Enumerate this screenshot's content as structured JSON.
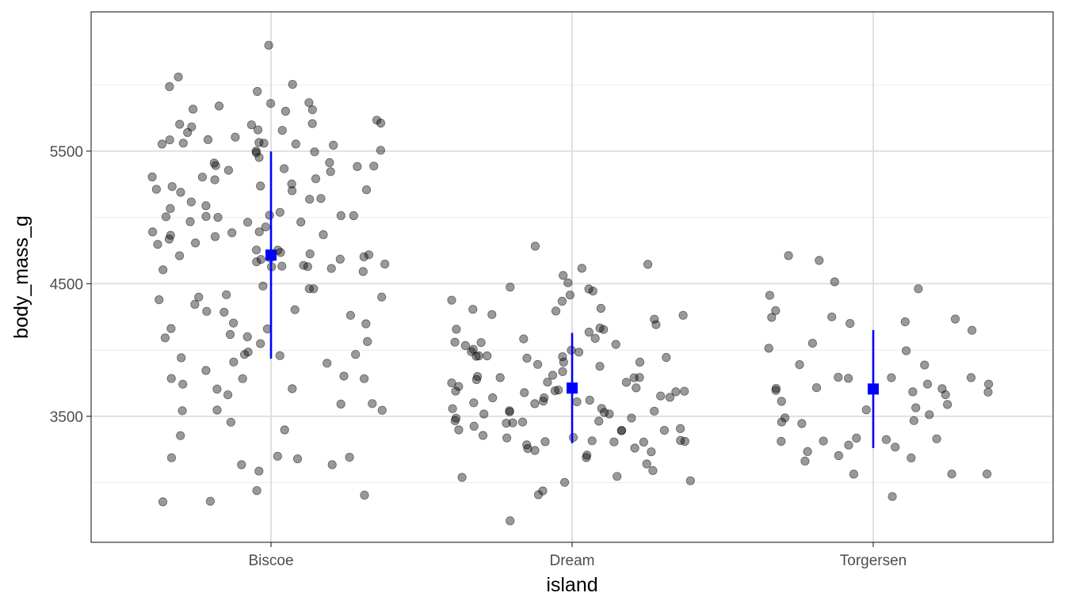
{
  "chart_data": {
    "type": "scatter",
    "subtype": "jittered strip plot with mean ± SD summary",
    "xlabel": "island",
    "ylabel": "body_mass_g",
    "categories": [
      "Biscoe",
      "Dream",
      "Torgersen"
    ],
    "ylim": [
      2550,
      6550
    ],
    "y_ticks": [
      3500,
      4500,
      5500
    ],
    "y_tick_labels": [
      "3500",
      "4500",
      "5500"
    ],
    "grid": true,
    "point_color": "#000000",
    "point_opacity": 0.4,
    "summary_color": "#0000ff",
    "summary": [
      {
        "category": "Biscoe",
        "mean": 4716,
        "low": 3934,
        "high": 5498
      },
      {
        "category": "Dream",
        "mean": 3713,
        "low": 3297,
        "high": 4129
      },
      {
        "category": "Torgersen",
        "mean": 3706,
        "low": 3261,
        "high": 4151
      }
    ],
    "points": [
      {
        "category": "Biscoe",
        "values": [
          6300,
          6050,
          5950,
          6000,
          6000,
          5850,
          5850,
          5850,
          5800,
          5800,
          5800,
          5750,
          5700,
          5700,
          5700,
          5700,
          5700,
          5650,
          5650,
          5650,
          5600,
          5600,
          5600,
          5550,
          5550,
          5550,
          5550,
          5550,
          5550,
          5500,
          5500,
          5500,
          5500,
          5450,
          5400,
          5400,
          5400,
          5400,
          5400,
          5350,
          5350,
          5350,
          5300,
          5300,
          5300,
          5300,
          5250,
          5250,
          5250,
          5200,
          5200,
          5200,
          5200,
          5150,
          5150,
          5100,
          5100,
          5050,
          5050,
          5000,
          5000,
          5000,
          5000,
          5000,
          5000,
          4950,
          4950,
          4950,
          4925,
          4900,
          4900,
          4900,
          4875,
          4850,
          4850,
          4850,
          4800,
          4800,
          4750,
          4750,
          4750,
          4725,
          4725,
          4725,
          4700,
          4700,
          4700,
          4700,
          4650,
          4650,
          4650,
          4650,
          4625,
          4625,
          4625,
          4600,
          4600,
          4500,
          4450,
          4450,
          4400,
          4400,
          4400,
          4375,
          4350,
          4300,
          4300,
          4300,
          4250,
          4200,
          4200,
          4150,
          4150,
          4100,
          4100,
          4100,
          4050,
          4050,
          3975,
          3950,
          3950,
          3950,
          3950,
          3900,
          3900,
          3850,
          3800,
          3800,
          3800,
          3775,
          3750,
          3725,
          3700,
          3650,
          3600,
          3600,
          3550,
          3550,
          3550,
          3450,
          3400,
          3350,
          3200,
          3200,
          3175,
          3175,
          3150,
          3150,
          3100,
          2925,
          2900,
          2850,
          2850
        ]
      },
      {
        "category": "Dream",
        "values": [
          4800,
          4650,
          4600,
          4550,
          4500,
          4475,
          4450,
          4450,
          4400,
          4375,
          4350,
          4300,
          4300,
          4300,
          4275,
          4250,
          4250,
          4200,
          4150,
          4150,
          4150,
          4150,
          4100,
          4075,
          4050,
          4050,
          4050,
          4025,
          4000,
          4000,
          4000,
          3975,
          3950,
          3950,
          3950,
          3950,
          3950,
          3950,
          3900,
          3900,
          3900,
          3875,
          3850,
          3800,
          3800,
          3800,
          3800,
          3775,
          3775,
          3750,
          3750,
          3750,
          3725,
          3700,
          3700,
          3700,
          3700,
          3700,
          3675,
          3675,
          3650,
          3650,
          3650,
          3650,
          3625,
          3600,
          3600,
          3600,
          3600,
          3575,
          3550,
          3550,
          3550,
          3525,
          3525,
          3500,
          3500,
          3500,
          3475,
          3475,
          3450,
          3450,
          3450,
          3450,
          3425,
          3400,
          3400,
          3400,
          3400,
          3375,
          3350,
          3350,
          3325,
          3325,
          3325,
          3300,
          3300,
          3300,
          3300,
          3300,
          3250,
          3250,
          3250,
          3250,
          3200,
          3200,
          3150,
          3100,
          3050,
          3050,
          3000,
          3000,
          2925,
          2900,
          2700
        ]
      },
      {
        "category": "Torgersen",
        "values": [
          4700,
          4675,
          4500,
          4450,
          4400,
          4300,
          4250,
          4250,
          4250,
          4200,
          4200,
          4150,
          4050,
          4000,
          4000,
          3900,
          3900,
          3800,
          3800,
          3800,
          3800,
          3750,
          3725,
          3700,
          3700,
          3700,
          3700,
          3700,
          3700,
          3650,
          3625,
          3600,
          3550,
          3550,
          3500,
          3500,
          3450,
          3450,
          3450,
          3350,
          3325,
          3325,
          3300,
          3300,
          3275,
          3250,
          3250,
          3200,
          3200,
          3150,
          3050,
          3050,
          3050,
          2900
        ]
      }
    ]
  }
}
